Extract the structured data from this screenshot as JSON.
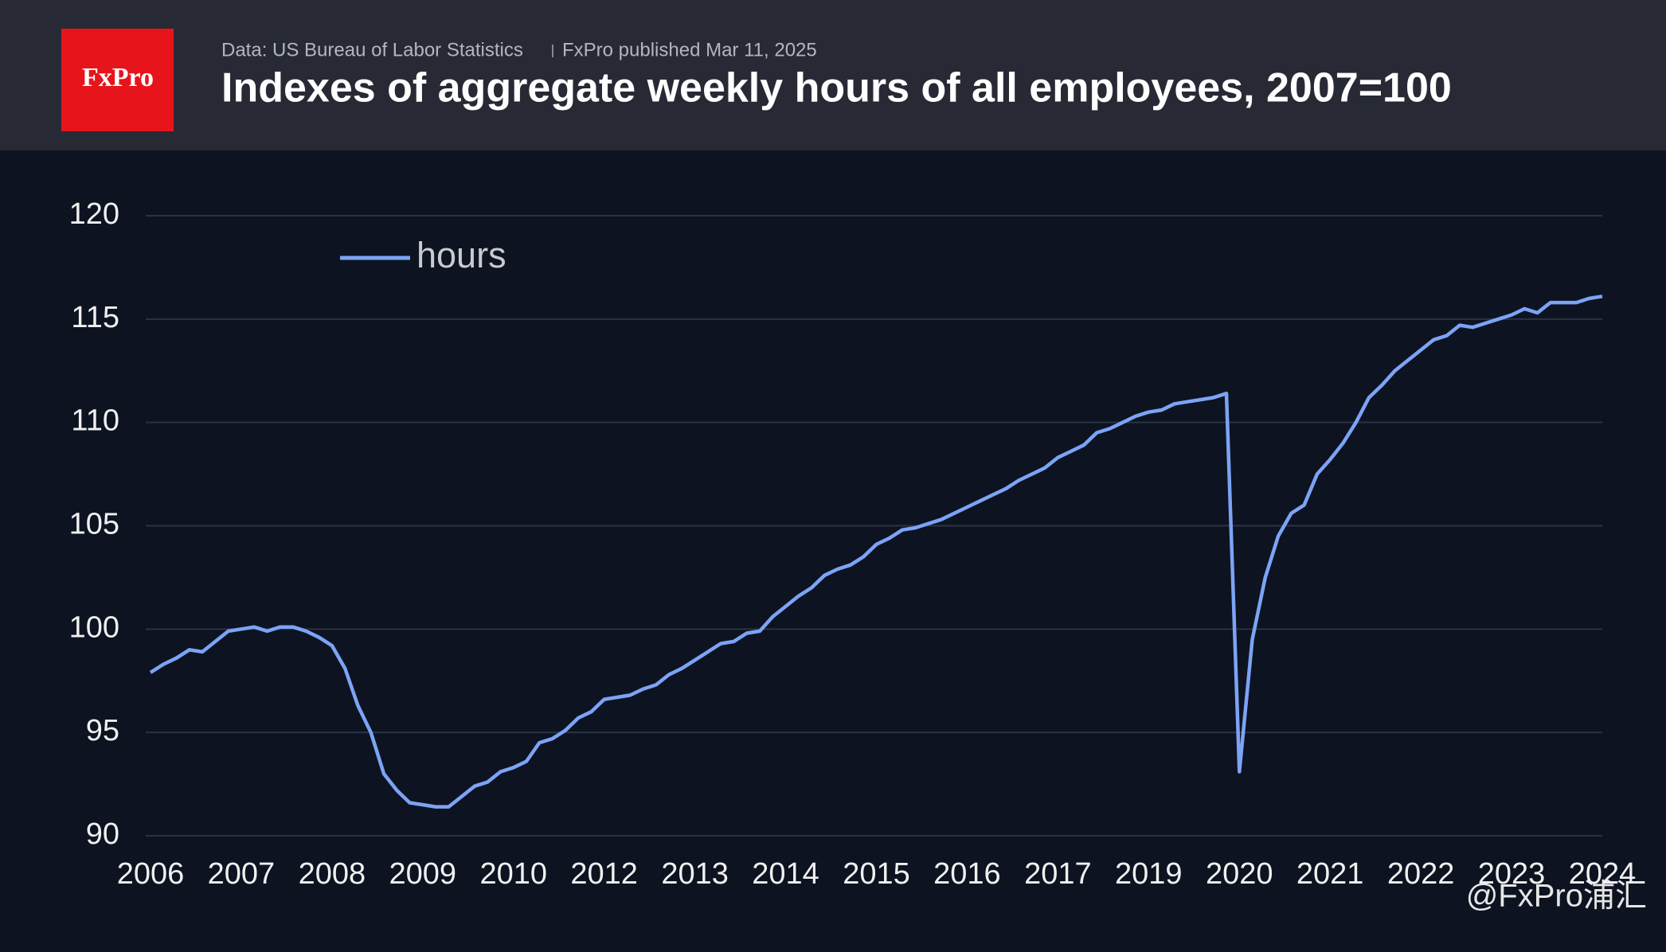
{
  "logo": "FxPro",
  "source": "Data: US Bureau of Labor Statistics",
  "published": "FxPro published Mar 11, 2025",
  "watermark": "@FxPro浦汇",
  "chart_data": {
    "type": "line",
    "title": "Indexes of aggregate weekly hours of all employees, 2007=100",
    "categories": [
      "2006",
      null,
      null,
      null,
      null,
      null,
      null,
      "2007",
      null,
      null,
      null,
      null,
      null,
      null,
      "2008",
      null,
      null,
      null,
      null,
      null,
      null,
      "2009",
      null,
      null,
      null,
      null,
      null,
      null,
      "2010",
      null,
      null,
      null,
      null,
      null,
      null,
      "2012",
      null,
      null,
      null,
      null,
      null,
      null,
      "2013",
      null,
      null,
      null,
      null,
      null,
      null,
      "2014",
      null,
      null,
      null,
      null,
      null,
      null,
      "2015",
      null,
      null,
      null,
      null,
      null,
      null,
      "2016",
      null,
      null,
      null,
      null,
      null,
      null,
      "2017",
      null,
      null,
      null,
      null,
      null,
      null,
      "2019",
      null,
      null,
      null,
      null,
      null,
      null,
      "2020",
      null,
      null,
      null,
      null,
      null,
      null,
      "2021",
      null,
      null,
      null,
      null,
      null,
      null,
      "2022",
      null,
      null,
      null,
      null,
      null,
      null,
      "2023",
      null,
      null,
      null,
      null,
      null,
      null,
      "2024"
    ],
    "series": [
      {
        "name": "hours",
        "color": "#7ca3f5",
        "values": [
          97.9,
          98.3,
          98.6,
          99.0,
          98.9,
          99.4,
          99.9,
          100.0,
          100.1,
          99.9,
          100.1,
          100.1,
          99.9,
          99.6,
          99.2,
          98.1,
          96.3,
          95.0,
          93.0,
          92.2,
          91.6,
          91.5,
          91.4,
          91.4,
          91.9,
          92.4,
          92.6,
          93.1,
          93.3,
          93.6,
          94.5,
          94.7,
          95.1,
          95.7,
          96.0,
          96.6,
          96.7,
          96.8,
          97.1,
          97.3,
          97.8,
          98.1,
          98.5,
          98.9,
          99.3,
          99.4,
          99.8,
          99.9,
          100.6,
          101.1,
          101.6,
          102.0,
          102.6,
          102.9,
          103.1,
          103.5,
          104.1,
          104.4,
          104.8,
          104.9,
          105.1,
          105.3,
          105.6,
          105.9,
          106.2,
          106.5,
          106.8,
          107.2,
          107.5,
          107.8,
          108.3,
          108.6,
          108.9,
          109.5,
          109.7,
          110.0,
          110.3,
          110.5,
          110.6,
          110.9,
          111.0,
          111.1,
          111.2,
          111.4,
          93.1,
          99.5,
          102.5,
          104.5,
          105.6,
          106.0,
          107.5,
          108.2,
          109.0,
          110.0,
          111.2,
          111.8,
          112.5,
          113.0,
          113.5,
          114.0,
          114.2,
          114.7,
          114.6,
          114.8,
          115.0,
          115.2,
          115.5,
          115.3,
          115.8,
          115.8,
          115.8,
          116.0,
          116.1
        ]
      }
    ],
    "ylim": [
      90,
      120
    ],
    "yticks": [
      90,
      95,
      100,
      105,
      110,
      115,
      120
    ],
    "grid": true,
    "legend": "top-left"
  }
}
